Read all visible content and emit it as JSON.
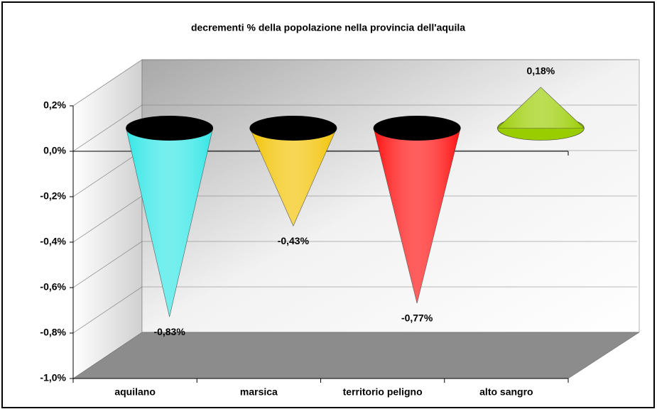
{
  "chart_data": {
    "type": "cone",
    "title": "decrementi % della popolazione nella provincia dell'aquila",
    "categories": [
      "aquilano",
      "marsica",
      "territorio peligno",
      "alto sangro"
    ],
    "values": [
      -0.83,
      -0.43,
      -0.77,
      0.18
    ],
    "value_labels": [
      "-0,83%",
      "-0,43%",
      "-0,77%",
      "0,18%"
    ],
    "colors": [
      "#33e6e6",
      "#f2c200",
      "#ff1010",
      "#9acd00"
    ],
    "ylim": [
      -1.0,
      0.2
    ],
    "yticks": [
      {
        "value": -1.0,
        "label": "-1,0%"
      },
      {
        "value": -0.8,
        "label": "-0,8%"
      },
      {
        "value": -0.6,
        "label": "-0,6%"
      },
      {
        "value": -0.4,
        "label": "-0,4%"
      },
      {
        "value": -0.2,
        "label": "-0,2%"
      },
      {
        "value": 0.0,
        "label": "0,0%"
      },
      {
        "value": 0.2,
        "label": "0,2%"
      }
    ],
    "grid": true
  }
}
